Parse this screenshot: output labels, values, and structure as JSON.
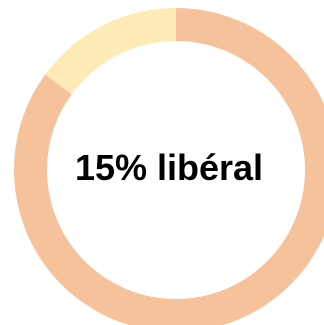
{
  "chart_data": {
    "type": "pie",
    "variant": "donut",
    "center_label": "15% libéral",
    "slices": [
      {
        "value": 15,
        "color": "#FFEBB5"
      },
      {
        "value": 85,
        "color": "#F6C29B"
      }
    ],
    "start": "top",
    "direction": "counter-clockwise"
  },
  "background_color": "#FFFFFF"
}
